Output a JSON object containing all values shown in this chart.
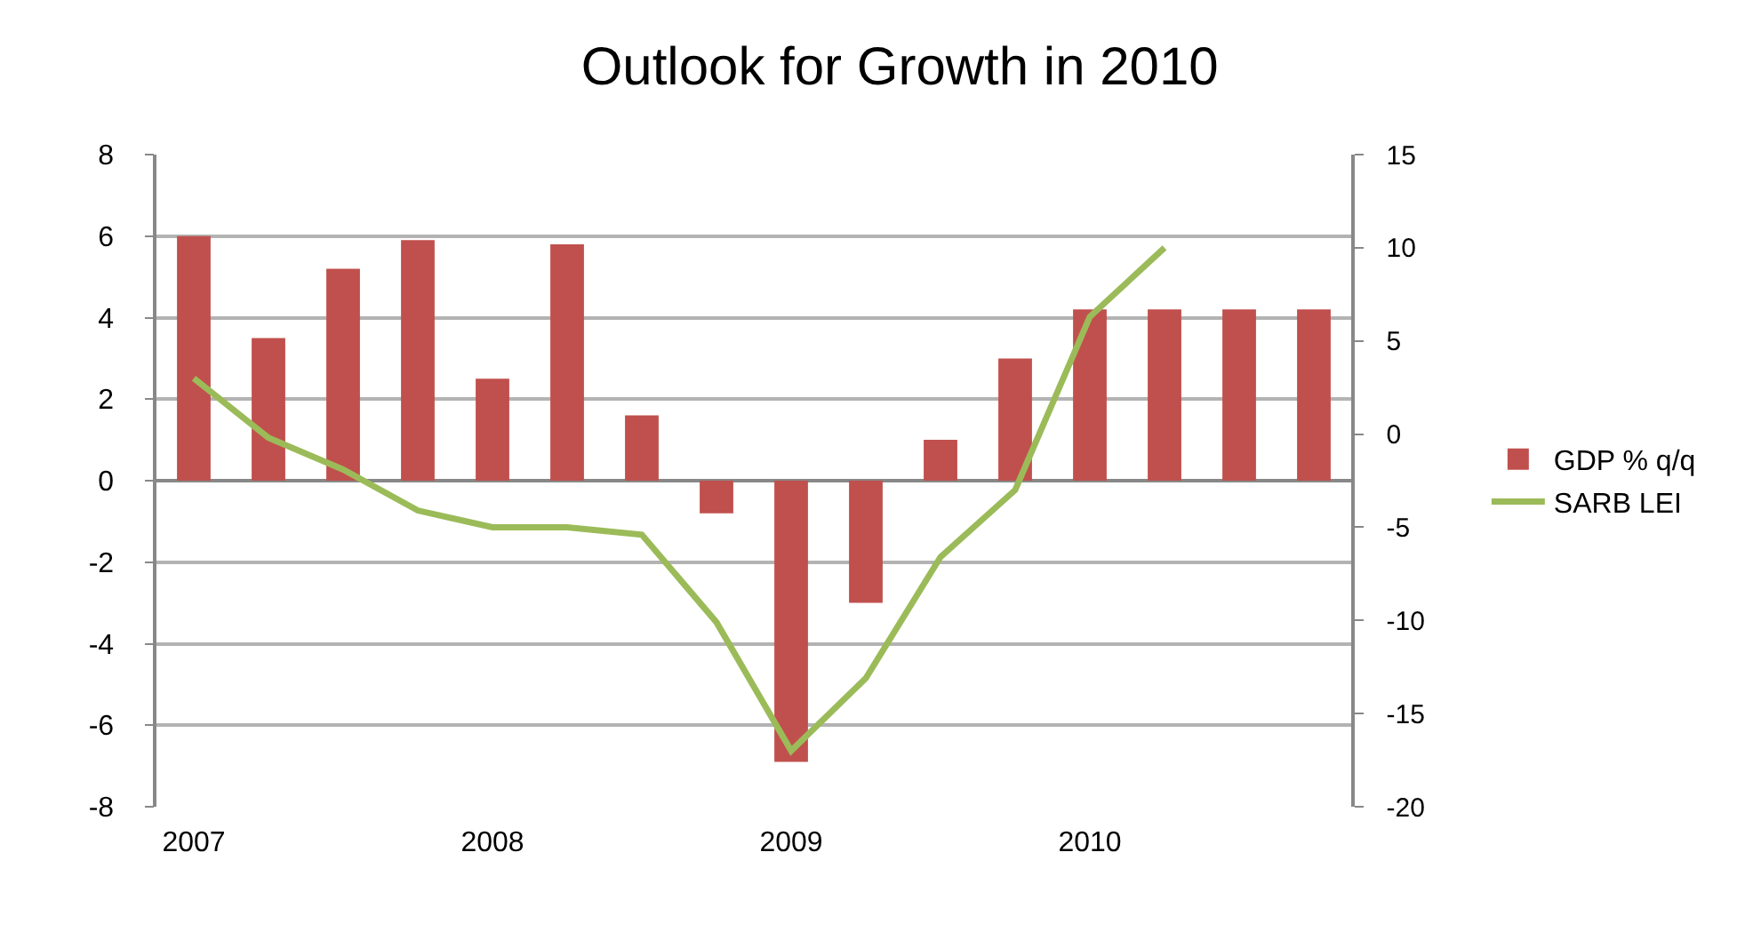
{
  "chart_data": {
    "type": "bar",
    "title": "Outlook for Growth in 2010",
    "categories": [
      "2007",
      null,
      null,
      null,
      "2008",
      null,
      null,
      null,
      "2009",
      null,
      null,
      null,
      "2010",
      null,
      null,
      null
    ],
    "series": [
      {
        "name": "GDP % q/q",
        "color": "#c0504d",
        "values": [
          6.0,
          3.5,
          5.2,
          5.9,
          2.5,
          5.8,
          1.6,
          -0.8,
          -6.9,
          -3.0,
          1.0,
          3.0,
          4.2,
          4.2,
          4.2,
          4.2
        ]
      },
      {
        "name": "SARB LEI",
        "type": "line",
        "axis": "y2",
        "color": "#9bbb59",
        "values": [
          3.0,
          -0.2,
          -1.9,
          -4.1,
          -5.0,
          -5.0,
          -5.4,
          -10.1,
          -17.0,
          -13.1,
          -6.6,
          -3.0,
          6.3,
          10.0,
          null,
          null
        ]
      }
    ],
    "ylim": [
      -8,
      8
    ],
    "yticks": [
      -8,
      -6,
      -4,
      -2,
      0,
      2,
      4,
      6,
      8
    ],
    "y2lim": [
      -20,
      15
    ],
    "y2ticks": [
      -20,
      -15,
      -10,
      -5,
      0,
      5,
      10,
      15
    ],
    "grid": "y",
    "legend": "right",
    "marker": "none",
    "line_style": "solid"
  }
}
